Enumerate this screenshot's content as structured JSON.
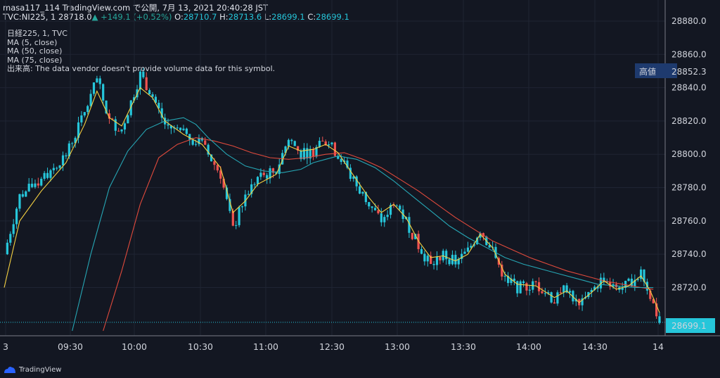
{
  "header": {
    "line1": "masa117_114 TradingView.com で公開, 7月 13, 2021 20:40:28 JST",
    "symbol": "TVC:NI225, 1",
    "last": "28718.0",
    "change": "+149.1 (+0.52%)",
    "o_label": "O:",
    "o_value": "28710.7",
    "h_label": "H:",
    "h_value": "28713.6",
    "l_label": "L:",
    "l_value": "28699.1",
    "c_label": "C:",
    "c_value": "28699.1"
  },
  "legend": {
    "line1": "日経225, 1, TVC",
    "line2": "MA (5, close)",
    "line3": "MA (50, close)",
    "line4": "MA (75, close)",
    "line5": "出来高: The data vendor doesn't provide volume data for this symbol."
  },
  "colors": {
    "background": "#131722",
    "candle": "#26c6da",
    "candle_down": "#ef5350",
    "ma5": "#f5d142",
    "ma50": "#26a6b4",
    "ma75": "#e04a3c",
    "grid": "#1f2433"
  },
  "footer": {
    "brand": "TradingView",
    "logo_icon": "tradingview-logo-icon"
  },
  "chart_data": {
    "type": "candlestick",
    "y_ticks": [
      "28880.0",
      "28860.0",
      "28840.0",
      "28820.0",
      "28800.0",
      "28780.0",
      "28760.0",
      "28740.0",
      "28720.0"
    ],
    "ylim": [
      28694,
      28880
    ],
    "x_ticks": [
      "3",
      "09:30",
      "10:00",
      "10:30",
      "11:00",
      "12:30",
      "13:00",
      "13:30",
      "14:00",
      "14:30",
      "14"
    ],
    "high_label": "高値",
    "high_value": "28852.3",
    "last_price_label": "28699.1",
    "price_path": [
      [
        0,
        28740
      ],
      [
        5,
        28775
      ],
      [
        12,
        28785
      ],
      [
        20,
        28800
      ],
      [
        26,
        28825
      ],
      [
        30,
        28845
      ],
      [
        34,
        28820
      ],
      [
        38,
        28815
      ],
      [
        44,
        28848
      ],
      [
        48,
        28835
      ],
      [
        52,
        28818
      ],
      [
        58,
        28812
      ],
      [
        64,
        28806
      ],
      [
        70,
        28788
      ],
      [
        74,
        28755
      ],
      [
        78,
        28775
      ],
      [
        82,
        28786
      ],
      [
        88,
        28790
      ],
      [
        92,
        28810
      ],
      [
        96,
        28800
      ],
      [
        100,
        28802
      ],
      [
        104,
        28808
      ],
      [
        108,
        28800
      ],
      [
        112,
        28787
      ],
      [
        118,
        28770
      ],
      [
        122,
        28760
      ],
      [
        126,
        28772
      ],
      [
        130,
        28760
      ],
      [
        134,
        28745
      ],
      [
        138,
        28733
      ],
      [
        142,
        28740
      ],
      [
        146,
        28735
      ],
      [
        150,
        28742
      ],
      [
        154,
        28755
      ],
      [
        158,
        28742
      ],
      [
        162,
        28725
      ],
      [
        166,
        28720
      ],
      [
        172,
        28722
      ],
      [
        178,
        28712
      ],
      [
        182,
        28720
      ],
      [
        186,
        28708
      ],
      [
        190,
        28718
      ],
      [
        194,
        28726
      ],
      [
        198,
        28718
      ],
      [
        202,
        28722
      ],
      [
        206,
        28730
      ],
      [
        209,
        28715
      ],
      [
        212,
        28699
      ]
    ],
    "ma5": [
      [
        0,
        28720
      ],
      [
        5,
        28760
      ],
      [
        12,
        28778
      ],
      [
        20,
        28795
      ],
      [
        26,
        28818
      ],
      [
        30,
        28838
      ],
      [
        34,
        28822
      ],
      [
        38,
        28817
      ],
      [
        44,
        28840
      ],
      [
        48,
        28834
      ],
      [
        52,
        28820
      ],
      [
        58,
        28812
      ],
      [
        64,
        28806
      ],
      [
        70,
        28792
      ],
      [
        74,
        28765
      ],
      [
        78,
        28772
      ],
      [
        82,
        28782
      ],
      [
        88,
        28788
      ],
      [
        92,
        28805
      ],
      [
        96,
        28802
      ],
      [
        100,
        28803
      ],
      [
        104,
        28806
      ],
      [
        108,
        28801
      ],
      [
        112,
        28790
      ],
      [
        118,
        28774
      ],
      [
        122,
        28765
      ],
      [
        126,
        28770
      ],
      [
        130,
        28762
      ],
      [
        134,
        28748
      ],
      [
        138,
        28738
      ],
      [
        142,
        28739
      ],
      [
        146,
        28736
      ],
      [
        150,
        28740
      ],
      [
        154,
        28752
      ],
      [
        158,
        28744
      ],
      [
        162,
        28728
      ],
      [
        166,
        28722
      ],
      [
        172,
        28721
      ],
      [
        178,
        28714
      ],
      [
        182,
        28718
      ],
      [
        186,
        28711
      ],
      [
        190,
        28717
      ],
      [
        194,
        28724
      ],
      [
        198,
        28719
      ],
      [
        202,
        28721
      ],
      [
        206,
        28727
      ],
      [
        209,
        28718
      ],
      [
        212,
        28705
      ]
    ],
    "ma50": [
      [
        22,
        28694
      ],
      [
        28,
        28740
      ],
      [
        34,
        28780
      ],
      [
        40,
        28802
      ],
      [
        46,
        28815
      ],
      [
        52,
        28820
      ],
      [
        58,
        28822
      ],
      [
        62,
        28818
      ],
      [
        66,
        28810
      ],
      [
        72,
        28800
      ],
      [
        78,
        28793
      ],
      [
        84,
        28790
      ],
      [
        90,
        28789
      ],
      [
        96,
        28791
      ],
      [
        100,
        28795
      ],
      [
        104,
        28797
      ],
      [
        108,
        28799
      ],
      [
        114,
        28797
      ],
      [
        120,
        28792
      ],
      [
        126,
        28784
      ],
      [
        132,
        28775
      ],
      [
        138,
        28766
      ],
      [
        144,
        28757
      ],
      [
        150,
        28750
      ],
      [
        156,
        28744
      ],
      [
        162,
        28738
      ],
      [
        168,
        28734
      ],
      [
        174,
        28731
      ],
      [
        180,
        28728
      ],
      [
        186,
        28725
      ],
      [
        192,
        28722
      ],
      [
        198,
        28721
      ],
      [
        204,
        28720
      ],
      [
        210,
        28720
      ]
    ],
    "ma75": [
      [
        32,
        28694
      ],
      [
        38,
        28730
      ],
      [
        44,
        28770
      ],
      [
        50,
        28798
      ],
      [
        56,
        28806
      ],
      [
        62,
        28810
      ],
      [
        68,
        28808
      ],
      [
        74,
        28805
      ],
      [
        80,
        28801
      ],
      [
        86,
        28798
      ],
      [
        92,
        28797
      ],
      [
        98,
        28798
      ],
      [
        104,
        28800
      ],
      [
        110,
        28801
      ],
      [
        116,
        28797
      ],
      [
        122,
        28792
      ],
      [
        128,
        28785
      ],
      [
        134,
        28778
      ],
      [
        140,
        28770
      ],
      [
        146,
        28762
      ],
      [
        152,
        28755
      ],
      [
        158,
        28748
      ],
      [
        164,
        28743
      ],
      [
        170,
        28738
      ],
      [
        176,
        28734
      ],
      [
        182,
        28730
      ],
      [
        188,
        28727
      ],
      [
        194,
        28724
      ],
      [
        200,
        28722
      ],
      [
        206,
        28720
      ],
      [
        210,
        28719
      ]
    ]
  }
}
